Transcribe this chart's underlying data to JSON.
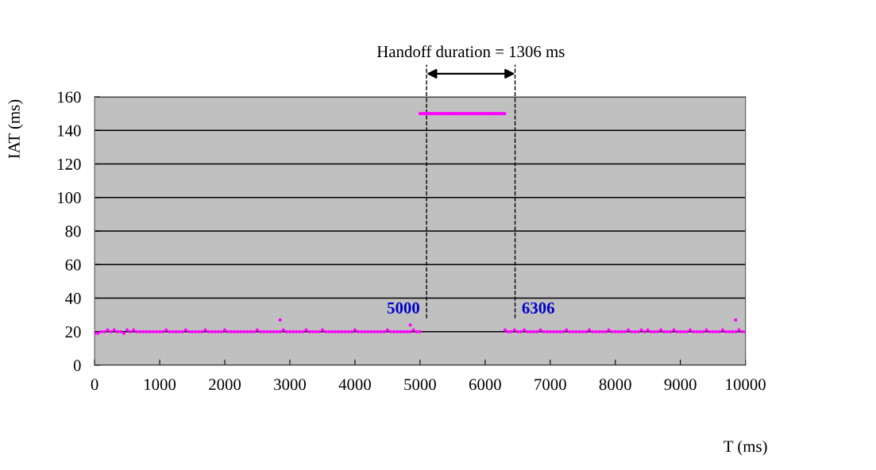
{
  "chart_data": {
    "type": "scatter",
    "xlabel": "T (ms)",
    "ylabel": "IAT (ms)",
    "xlim": [
      0,
      10000
    ],
    "xticks": [
      0,
      1000,
      2000,
      3000,
      4000,
      5000,
      6000,
      7000,
      8000,
      9000,
      10000
    ],
    "ylim": [
      0,
      160
    ],
    "yticks": [
      0,
      20,
      40,
      60,
      80,
      100,
      120,
      140,
      160
    ],
    "grid": "y",
    "marker": "circle",
    "series": [
      {
        "color": "#ff00ff",
        "x": [
          0,
          50,
          100,
          150,
          200,
          250,
          300,
          350,
          400,
          450,
          500,
          550,
          600,
          650,
          700,
          750,
          800,
          850,
          900,
          950,
          1000,
          1050,
          1100,
          1150,
          1200,
          1250,
          1300,
          1350,
          1400,
          1450,
          1500,
          1550,
          1600,
          1650,
          1700,
          1750,
          1800,
          1850,
          1900,
          1950,
          2000,
          2050,
          2100,
          2150,
          2200,
          2250,
          2300,
          2350,
          2400,
          2450,
          2500,
          2550,
          2600,
          2650,
          2700,
          2750,
          2800,
          2850,
          2850,
          2900,
          2950,
          3000,
          3050,
          3100,
          3150,
          3200,
          3250,
          3300,
          3350,
          3400,
          3450,
          3500,
          3550,
          3600,
          3650,
          3700,
          3750,
          3800,
          3850,
          3900,
          3950,
          4000,
          4050,
          4100,
          4150,
          4200,
          4250,
          4300,
          4350,
          4400,
          4450,
          4500,
          4550,
          4600,
          4650,
          4700,
          4750,
          4800,
          4850,
          4850,
          4900,
          4950,
          5000
        ],
        "values": [
          19,
          19,
          20,
          20,
          21,
          20,
          21,
          20,
          20,
          19,
          21,
          20,
          21,
          20,
          20,
          20,
          20,
          20,
          20,
          20,
          20,
          20,
          21,
          20,
          20,
          20,
          20,
          20,
          21,
          20,
          20,
          20,
          20,
          20,
          21,
          20,
          20,
          20,
          20,
          20,
          21,
          20,
          20,
          20,
          20,
          20,
          20,
          20,
          20,
          20,
          21,
          20,
          20,
          20,
          20,
          20,
          20,
          27,
          20,
          21,
          20,
          20,
          20,
          20,
          20,
          20,
          21,
          20,
          20,
          20,
          20,
          21,
          20,
          20,
          20,
          20,
          20,
          20,
          20,
          20,
          20,
          21,
          20,
          20,
          20,
          20,
          20,
          20,
          20,
          20,
          20,
          21,
          20,
          20,
          20,
          20,
          20,
          20,
          24,
          20,
          21,
          20,
          20
        ]
      },
      {
        "color": "#ff00ff",
        "x": [
          5000,
          5025,
          5050,
          5075,
          5100,
          5125,
          5150,
          5175,
          5200,
          5225,
          5250,
          5275,
          5300,
          5325,
          5350,
          5375,
          5400,
          5425,
          5450,
          5475,
          5500,
          5525,
          5550,
          5575,
          5600,
          5625,
          5650,
          5675,
          5700,
          5725,
          5750,
          5775,
          5800,
          5825,
          5850,
          5875,
          5900,
          5925,
          5950,
          5975,
          6000,
          6025,
          6050,
          6075,
          6100,
          6125,
          6150,
          6175,
          6200,
          6225,
          6250,
          6275,
          6300
        ],
        "values": [
          150,
          150,
          150,
          150,
          150,
          150,
          150,
          150,
          150,
          150,
          150,
          150,
          150,
          150,
          150,
          150,
          150,
          150,
          150,
          150,
          150,
          150,
          150,
          150,
          150,
          150,
          150,
          150,
          150,
          150,
          150,
          150,
          150,
          150,
          150,
          150,
          150,
          150,
          150,
          150,
          150,
          150,
          150,
          150,
          150,
          150,
          150,
          150,
          150,
          150,
          150,
          150,
          150
        ]
      },
      {
        "color": "#ff00ff",
        "x": [
          6306,
          6350,
          6400,
          6450,
          6500,
          6550,
          6600,
          6650,
          6700,
          6750,
          6800,
          6850,
          6900,
          6950,
          7000,
          7050,
          7100,
          7150,
          7200,
          7250,
          7300,
          7350,
          7400,
          7450,
          7500,
          7550,
          7600,
          7650,
          7700,
          7750,
          7800,
          7850,
          7900,
          7950,
          8000,
          8050,
          8100,
          8150,
          8200,
          8250,
          8300,
          8350,
          8400,
          8450,
          8500,
          8550,
          8600,
          8650,
          8700,
          8750,
          8800,
          8850,
          8900,
          8950,
          9000,
          9050,
          9100,
          9150,
          9200,
          9250,
          9300,
          9350,
          9400,
          9450,
          9500,
          9550,
          9600,
          9650,
          9700,
          9750,
          9800,
          9850,
          9850,
          9900,
          9950,
          10000
        ],
        "values": [
          21,
          20,
          20,
          21,
          20,
          20,
          21,
          20,
          20,
          20,
          20,
          21,
          20,
          20,
          20,
          20,
          20,
          20,
          20,
          21,
          20,
          20,
          20,
          20,
          20,
          20,
          21,
          20,
          20,
          20,
          20,
          20,
          21,
          20,
          20,
          20,
          20,
          20,
          21,
          20,
          20,
          20,
          21,
          20,
          21,
          20,
          20,
          20,
          21,
          20,
          20,
          20,
          21,
          20,
          20,
          20,
          20,
          21,
          20,
          20,
          20,
          20,
          21,
          20,
          20,
          20,
          20,
          21,
          20,
          20,
          20,
          27,
          20,
          21,
          20,
          20
        ]
      }
    ],
    "ref_lines": [
      {
        "axis": "x",
        "value": 5100,
        "color": "#000000",
        "line_style": "dashed"
      },
      {
        "axis": "x",
        "value": 6460,
        "color": "#000000",
        "line_style": "dashed"
      }
    ],
    "annotations": [
      "Handoff duration = 1306 ms",
      "5000",
      "6306"
    ]
  }
}
